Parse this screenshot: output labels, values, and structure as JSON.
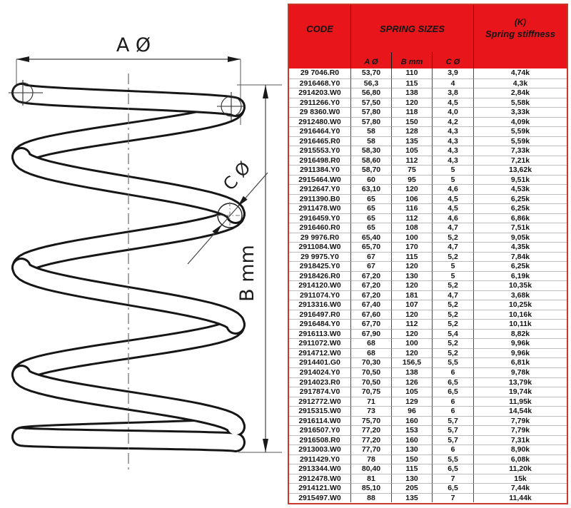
{
  "diagram": {
    "label_a": "A Ø",
    "label_b": "B mm",
    "label_c": "C Ø"
  },
  "table": {
    "header": {
      "code": "CODE",
      "sizes": "SPRING SIZES",
      "k_line1": "(K)",
      "k_line2": "Spring stiffness"
    },
    "subheader": {
      "a": "A Ø",
      "b": "B mm",
      "c": "C Ø"
    },
    "colors": {
      "header_red": "#e8151b",
      "table_border": "#cc372c",
      "row_line": "#bdbdbd",
      "column_line": "#4a4a4a"
    },
    "rows": [
      {
        "code": "29 7046.R0",
        "a": "53,70",
        "b": "110",
        "c": "3,9",
        "k": "4,74k"
      },
      {
        "code": "2916468.Y0",
        "a": "56,3",
        "b": "115",
        "c": "4",
        "k": "4,3k"
      },
      {
        "code": "2914203.W0",
        "a": "56,80",
        "b": "138",
        "c": "3,8",
        "k": "2,84k"
      },
      {
        "code": "2911266.Y0",
        "a": "57,50",
        "b": "120",
        "c": "4,5",
        "k": "5,58k"
      },
      {
        "code": "29 8360.W0",
        "a": "57,80",
        "b": "118",
        "c": "4,0",
        "k": "3,33k"
      },
      {
        "code": "2912480.W0",
        "a": "57,80",
        "b": "150",
        "c": "4,2",
        "k": "4,09k"
      },
      {
        "code": "2916464.Y0",
        "a": "58",
        "b": "128",
        "c": "4,3",
        "k": "5,59k"
      },
      {
        "code": "2916465.R0",
        "a": "58",
        "b": "135",
        "c": "4,3",
        "k": "5,59k"
      },
      {
        "code": "2915553.Y0",
        "a": "58,30",
        "b": "105",
        "c": "4,3",
        "k": "7,33k"
      },
      {
        "code": "2916498.R0",
        "a": "58,60",
        "b": "112",
        "c": "4,3",
        "k": "7,21k"
      },
      {
        "code": "2911384.Y0",
        "a": "58,70",
        "b": "75",
        "c": "5",
        "k": "13,62k"
      },
      {
        "code": "2915464.W0",
        "a": "60",
        "b": "95",
        "c": "5",
        "k": "9,51k"
      },
      {
        "code": "2912647.Y0",
        "a": "63,10",
        "b": "120",
        "c": "4,6",
        "k": "4,53k"
      },
      {
        "code": "2911390.B0",
        "a": "65",
        "b": "106",
        "c": "4,5",
        "k": "6,25k"
      },
      {
        "code": "2911478.W0",
        "a": "65",
        "b": "116",
        "c": "4,5",
        "k": "6,25k"
      },
      {
        "code": "2916459.Y0",
        "a": "65",
        "b": "112",
        "c": "4,6",
        "k": "6,86k"
      },
      {
        "code": "2916460.R0",
        "a": "65",
        "b": "108",
        "c": "4,7",
        "k": "7,51k"
      },
      {
        "code": "29 9976.R0",
        "a": "65,40",
        "b": "100",
        "c": "5,2",
        "k": "9,05k"
      },
      {
        "code": "2911084.W0",
        "a": "65,70",
        "b": "170",
        "c": "4,7",
        "k": "4,35k"
      },
      {
        "code": "29 9975.Y0",
        "a": "67",
        "b": "115",
        "c": "5,2",
        "k": "7,84k"
      },
      {
        "code": "2918425.Y0",
        "a": "67",
        "b": "120",
        "c": "5",
        "k": "6,25k"
      },
      {
        "code": "2918426.R0",
        "a": "67,20",
        "b": "130",
        "c": "5",
        "k": "6,19k"
      },
      {
        "code": "2914120.W0",
        "a": "67,20",
        "b": "120",
        "c": "5,2",
        "k": "10,35k"
      },
      {
        "code": "2911074.Y0",
        "a": "67,20",
        "b": "181",
        "c": "4,7",
        "k": "3,68k"
      },
      {
        "code": "2913316.W0",
        "a": "67,40",
        "b": "107",
        "c": "5,2",
        "k": "10,25k"
      },
      {
        "code": "2916497.R0",
        "a": "67,60",
        "b": "120",
        "c": "5,2",
        "k": "10,16k"
      },
      {
        "code": "2916484.Y0",
        "a": "67,70",
        "b": "112",
        "c": "5,2",
        "k": "10,11k"
      },
      {
        "code": "2916113.W0",
        "a": "67,90",
        "b": "120",
        "c": "5,4",
        "k": "8,82k"
      },
      {
        "code": "2911072.W0",
        "a": "68",
        "b": "100",
        "c": "5,2",
        "k": "9,96k"
      },
      {
        "code": "2914712.W0",
        "a": "68",
        "b": "120",
        "c": "5,2",
        "k": "9,96k"
      },
      {
        "code": "2914401.G0",
        "a": "70,30",
        "b": "156,5",
        "c": "5,5",
        "k": "6,81k"
      },
      {
        "code": "2914024.Y0",
        "a": "70,50",
        "b": "138",
        "c": "6",
        "k": "9,78k"
      },
      {
        "code": "2914023.R0",
        "a": "70,50",
        "b": "126",
        "c": "6,5",
        "k": "13,79k"
      },
      {
        "code": "2917874.V0",
        "a": "70,75",
        "b": "105",
        "c": "6,5",
        "k": "19,74k"
      },
      {
        "code": "2912772.W0",
        "a": "71",
        "b": "129",
        "c": "6",
        "k": "11,95k"
      },
      {
        "code": "2915315.W0",
        "a": "73",
        "b": "96",
        "c": "6",
        "k": "14,54k"
      },
      {
        "code": "2916114.W0",
        "a": "75,70",
        "b": "160",
        "c": "5,7",
        "k": "7,79k"
      },
      {
        "code": "2916507.Y0",
        "a": "77,20",
        "b": "153",
        "c": "5,7",
        "k": "7,79k"
      },
      {
        "code": "2916508.R0",
        "a": "77,20",
        "b": "160",
        "c": "5,7",
        "k": "7,31k"
      },
      {
        "code": "2913003.W0",
        "a": "77,70",
        "b": "130",
        "c": "6",
        "k": "8,90k"
      },
      {
        "code": "2911429.Y0",
        "a": "78",
        "b": "150",
        "c": "5,5",
        "k": "6,08k"
      },
      {
        "code": "2913344.W0",
        "a": "80,40",
        "b": "115",
        "c": "6,5",
        "k": "11,20k"
      },
      {
        "code": "2912478.W0",
        "a": "81",
        "b": "130",
        "c": "7",
        "k": "15k"
      },
      {
        "code": "2914121.W0",
        "a": "85,10",
        "b": "205",
        "c": "6,5",
        "k": "7,44k"
      },
      {
        "code": "2915497.W0",
        "a": "88",
        "b": "135",
        "c": "7",
        "k": "11,44k"
      }
    ]
  }
}
